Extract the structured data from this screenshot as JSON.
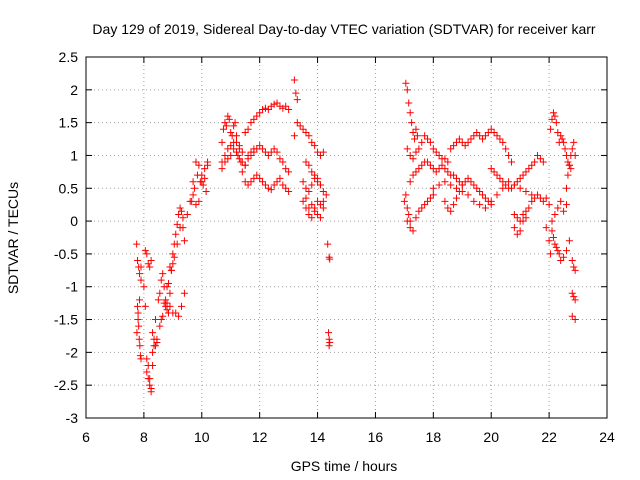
{
  "chart_data": {
    "type": "scatter",
    "title": "Day 129 of 2019, Sidereal Day-to-day VTEC variation (SDTVAR) for receiver karr",
    "xlabel": "GPS time / hours",
    "ylabel": "SDTVAR / TECUs",
    "xlim": [
      6,
      24
    ],
    "ylim": [
      -3,
      2.5
    ],
    "xticks": [
      6,
      8,
      10,
      12,
      14,
      16,
      18,
      20,
      22,
      24
    ],
    "yticks": [
      -3,
      -2.5,
      -2,
      -1.5,
      -1,
      -0.5,
      0,
      0.5,
      1,
      1.5,
      2,
      2.5
    ],
    "xtick_labels": [
      "6",
      "8",
      "10",
      "12",
      "14",
      "16",
      "18",
      "20",
      "22",
      "24"
    ],
    "ytick_labels": [
      "-3",
      "-2.5",
      "-2",
      "-1.5",
      "-1",
      "-0.5",
      "0",
      "0.5",
      "1",
      "1.5",
      "2",
      "2.5"
    ],
    "grid": true,
    "marker": "+",
    "color": "#ff0000",
    "series": [
      {
        "name": "SDTVAR",
        "x": [
          7.75,
          7.78,
          7.82,
          7.85,
          7.9,
          7.78,
          7.8,
          7.82,
          7.84,
          7.86,
          7.88,
          7.9,
          7.76,
          7.8,
          7.85,
          7.9,
          8.0,
          8.05,
          8.1,
          8.15,
          8.2,
          8.25,
          8.3,
          8.35,
          8.05,
          8.1,
          8.15,
          8.2,
          8.25,
          8.3,
          8.35,
          8.4,
          8.45,
          8.1,
          8.15,
          8.2,
          8.25,
          8.3,
          8.4,
          8.5,
          8.55,
          8.6,
          8.65,
          8.7,
          8.75,
          8.8,
          8.85,
          8.9,
          8.95,
          9.0,
          8.6,
          8.7,
          8.8,
          8.9,
          9.0,
          9.05,
          9.1,
          9.15,
          9.2,
          9.25,
          9.3,
          9.35,
          9.4,
          8.45,
          8.55,
          8.65,
          8.75,
          8.85,
          8.95,
          9.05,
          9.15,
          9.25,
          9.35,
          9.1,
          9.2,
          9.3,
          9.4,
          8.8,
          8.9,
          9.0,
          9.5,
          9.6,
          9.7,
          9.8,
          9.9,
          10.0,
          10.1,
          10.2,
          9.65,
          9.75,
          9.85,
          9.95,
          10.05,
          10.15,
          9.7,
          9.8,
          9.9,
          10.0,
          10.1,
          10.2,
          10.7,
          10.75,
          10.8,
          10.85,
          10.9,
          10.95,
          11.0,
          11.05,
          11.1,
          11.15,
          11.2,
          11.25,
          11.3,
          11.35,
          10.7,
          10.8,
          10.9,
          11.0,
          11.1,
          11.2,
          11.3,
          11.4,
          11.5,
          11.6,
          11.7,
          11.8,
          11.5,
          11.6,
          11.7,
          11.8,
          11.9,
          12.0,
          12.1,
          12.2,
          12.3,
          12.4,
          12.5,
          12.6,
          12.7,
          12.8,
          12.9,
          13.0,
          11.4,
          11.5,
          11.6,
          11.7,
          11.8,
          11.9,
          12.0,
          12.1,
          12.2,
          12.3,
          12.4,
          12.5,
          12.6,
          12.7,
          12.8,
          12.9,
          13.0,
          11.5,
          11.6,
          11.7,
          11.8,
          11.9,
          12.0,
          12.1,
          12.2,
          12.3,
          12.4,
          12.5,
          12.6,
          12.7,
          12.8,
          12.9,
          13.0,
          10.7,
          10.8,
          10.9,
          11.0,
          11.1,
          11.2,
          11.3,
          11.4,
          13.2,
          13.25,
          13.3,
          13.3,
          13.2,
          13.4,
          13.5,
          13.6,
          13.7,
          13.8,
          13.9,
          14.0,
          14.1,
          14.2,
          13.5,
          13.6,
          13.7,
          13.8,
          13.9,
          14.0,
          14.1,
          14.2,
          13.6,
          13.7,
          13.8,
          13.9,
          14.0,
          14.1,
          14.2,
          14.3,
          13.6,
          13.7,
          13.8,
          13.9,
          14.0,
          14.1,
          13.5,
          13.6,
          13.7,
          13.8,
          13.9,
          14.0,
          14.1,
          14.2,
          14.35,
          14.4,
          14.42,
          14.38,
          14.4,
          14.42,
          14.4,
          17.05,
          17.1,
          17.15,
          17.2,
          17.25,
          17.3,
          17.35,
          17.4,
          17.45,
          17.1,
          17.2,
          17.3,
          17.4,
          17.5,
          17.6,
          17.7,
          17.8,
          17.9,
          18.0,
          18.1,
          18.2,
          18.3,
          18.4,
          18.5,
          17.2,
          17.3,
          17.4,
          17.5,
          17.6,
          17.7,
          17.8,
          17.9,
          18.0,
          18.1,
          18.2,
          18.3,
          18.4,
          18.5,
          18.6,
          18.7,
          18.8,
          18.9,
          19.0,
          18.6,
          18.7,
          18.8,
          18.9,
          19.0,
          19.1,
          19.2,
          19.3,
          19.4,
          19.5,
          19.6,
          19.7,
          19.8,
          19.9,
          20.0,
          20.1,
          20.2,
          20.3,
          20.4,
          20.5,
          20.6,
          20.7,
          18.0,
          18.2,
          18.4,
          18.6,
          18.8,
          19.0,
          19.2,
          19.4,
          19.6,
          19.8,
          20.0,
          20.2,
          20.4,
          20.6,
          20.8,
          21.0,
          21.2,
          21.4,
          17.1,
          17.2,
          17.3,
          17.4,
          17.5,
          17.6,
          17.7,
          17.8,
          17.9,
          18.0,
          18.4,
          18.5,
          18.6,
          18.7,
          18.8,
          18.9,
          19.0,
          19.1,
          19.2,
          19.3,
          19.4,
          19.5,
          19.6,
          19.7,
          19.8,
          19.9,
          20.0,
          17.0,
          17.05,
          17.1,
          17.15,
          17.2,
          20.0,
          20.1,
          20.2,
          20.3,
          20.4,
          20.5,
          20.6,
          20.7,
          20.8,
          20.9,
          21.0,
          21.1,
          21.2,
          21.3,
          21.4,
          21.5,
          21.6,
          21.7,
          21.8,
          20.8,
          20.9,
          21.0,
          21.1,
          21.2,
          21.3,
          21.4,
          21.5,
          21.6,
          21.7,
          20.8,
          20.9,
          21.0,
          21.1,
          21.2,
          21.8,
          21.9,
          22.0,
          22.05,
          22.1,
          22.15,
          22.2,
          22.25,
          22.3,
          22.35,
          22.4,
          22.45,
          22.5,
          22.55,
          22.6,
          22.65,
          22.7,
          22.75,
          22.1,
          22.15,
          22.2,
          22.25,
          22.3,
          22.35,
          22.4,
          22.5,
          22.6,
          22.7,
          21.9,
          22.0,
          22.05,
          22.1,
          22.2,
          22.3,
          22.4,
          22.5,
          22.6,
          22.6,
          22.65,
          22.7,
          22.75,
          22.8,
          22.85,
          22.9,
          22.8,
          22.85,
          22.9,
          22.8,
          22.85,
          22.9,
          22.8,
          22.9
        ],
        "y": [
          -0.35,
          -0.6,
          -0.7,
          -0.8,
          -0.9,
          -1.3,
          -1.5,
          -1.6,
          -1.8,
          -1.9,
          -2.05,
          -2.1,
          -1.7,
          -1.4,
          -1.2,
          -0.7,
          -1.0,
          -1.3,
          -2.1,
          -2.2,
          -2.4,
          -2.55,
          -2.0,
          -1.9,
          -0.45,
          -0.5,
          -0.65,
          -0.7,
          -0.6,
          -1.7,
          -1.8,
          -1.9,
          -1.85,
          -2.3,
          -2.4,
          -2.5,
          -2.6,
          -2.2,
          -1.5,
          -1.2,
          -1.1,
          -0.9,
          -0.8,
          -1.0,
          -1.3,
          -1.35,
          -1.4,
          -1.1,
          -0.75,
          -0.65,
          -1.5,
          -1.25,
          -1.0,
          -0.7,
          -0.5,
          -0.35,
          -0.2,
          -0.05,
          0.1,
          0.2,
          0.15,
          -0.1,
          -0.3,
          -1.8,
          -1.6,
          -1.45,
          -1.2,
          -0.95,
          -0.75,
          -0.55,
          -0.35,
          -0.1,
          0.05,
          -1.4,
          -1.45,
          -1.3,
          -1.1,
          -1.25,
          -1.3,
          -1.4,
          0.1,
          0.3,
          0.6,
          0.9,
          0.85,
          0.7,
          0.8,
          0.9,
          0.3,
          0.5,
          0.7,
          0.6,
          0.55,
          0.45,
          0.4,
          0.25,
          0.3,
          0.6,
          0.65,
          0.85,
          1.2,
          1.4,
          1.5,
          1.45,
          1.6,
          1.55,
          1.35,
          1.3,
          1.45,
          1.5,
          1.2,
          1.0,
          1.1,
          0.9,
          0.8,
          0.9,
          0.95,
          1.0,
          1.1,
          1.05,
          0.95,
          0.9,
          0.85,
          1.0,
          1.05,
          1.1,
          1.35,
          1.4,
          1.5,
          1.55,
          1.6,
          1.65,
          1.7,
          1.72,
          1.7,
          1.75,
          1.78,
          1.8,
          1.75,
          1.72,
          1.75,
          1.7,
          0.75,
          0.85,
          0.95,
          1.0,
          1.05,
          1.1,
          1.15,
          1.1,
          1.05,
          1.0,
          1.05,
          1.1,
          1.05,
          0.95,
          0.9,
          0.8,
          0.75,
          0.6,
          0.55,
          0.6,
          0.65,
          0.7,
          0.65,
          0.6,
          0.55,
          0.5,
          0.48,
          0.55,
          0.6,
          0.65,
          0.55,
          0.5,
          0.45,
          0.9,
          1.0,
          1.1,
          1.15,
          1.2,
          1.3,
          1.15,
          1.05,
          2.15,
          1.95,
          1.85,
          1.5,
          1.3,
          1.45,
          1.4,
          1.35,
          1.3,
          1.2,
          1.15,
          1.05,
          1.0,
          1.05,
          0.6,
          0.5,
          0.45,
          0.55,
          0.65,
          0.6,
          0.55,
          0.45,
          0.2,
          0.1,
          0.05,
          0.2,
          0.3,
          0.25,
          0.3,
          0.4,
          0.9,
          0.85,
          0.75,
          0.7,
          0.65,
          0.55,
          0.3,
          0.35,
          0.2,
          0.25,
          0.15,
          0.1,
          0.05,
          0.2,
          -0.35,
          -0.55,
          -0.58,
          -1.7,
          -1.8,
          -1.85,
          -1.9,
          2.1,
          2.0,
          1.8,
          1.65,
          1.5,
          1.35,
          1.25,
          1.4,
          1.3,
          1.1,
          1.0,
          0.95,
          1.05,
          1.1,
          1.2,
          1.3,
          1.25,
          1.2,
          1.1,
          1.05,
          1.0,
          0.95,
          0.95,
          0.9,
          0.6,
          0.7,
          0.75,
          0.8,
          0.85,
          0.9,
          0.9,
          0.85,
          0.8,
          0.75,
          0.8,
          0.85,
          0.8,
          0.75,
          0.7,
          0.7,
          0.65,
          0.6,
          0.55,
          1.1,
          1.15,
          1.2,
          1.25,
          1.2,
          1.15,
          1.2,
          1.25,
          1.3,
          1.35,
          1.3,
          1.25,
          1.3,
          1.35,
          1.4,
          1.35,
          1.3,
          1.25,
          1.2,
          1.1,
          1.0,
          0.9,
          0.5,
          0.55,
          0.6,
          0.55,
          0.5,
          0.45,
          0.4,
          0.3,
          0.25,
          0.2,
          0.3,
          0.4,
          0.5,
          0.6,
          0.55,
          0.5,
          0.45,
          0.4,
          0.0,
          -0.1,
          -0.15,
          0.05,
          0.15,
          0.2,
          0.25,
          0.3,
          0.35,
          0.4,
          0.3,
          0.2,
          0.15,
          0.25,
          0.35,
          0.45,
          0.55,
          0.6,
          0.65,
          0.6,
          0.55,
          0.5,
          0.45,
          0.4,
          0.35,
          0.3,
          0.25,
          0.3,
          0.4,
          0.2,
          0.1,
          0.0,
          0.8,
          0.75,
          0.7,
          0.65,
          0.6,
          0.55,
          0.5,
          0.5,
          0.55,
          0.6,
          0.65,
          0.7,
          0.75,
          0.8,
          0.85,
          0.9,
          1.0,
          0.95,
          0.9,
          0.1,
          0.05,
          0.0,
          0.1,
          0.15,
          0.2,
          0.3,
          0.35,
          0.4,
          0.35,
          -0.1,
          -0.2,
          -0.15,
          0.0,
          0.05,
          0.3,
          0.35,
          0.25,
          1.4,
          1.55,
          1.65,
          1.6,
          1.5,
          1.35,
          1.2,
          1.3,
          1.25,
          1.2,
          1.1,
          1.0,
          0.9,
          0.85,
          0.8,
          -0.15,
          -0.25,
          -0.35,
          -0.4,
          -0.45,
          -0.5,
          -0.6,
          -0.55,
          -0.45,
          -0.3,
          -0.1,
          -0.3,
          -0.5,
          0.0,
          0.1,
          0.2,
          0.3,
          0.15,
          0.25,
          0.5,
          0.7,
          0.85,
          1.0,
          1.1,
          1.2,
          1.0,
          -0.6,
          -0.7,
          -0.75,
          -1.1,
          -1.15,
          -1.2,
          -1.45,
          -1.5
        ]
      }
    ]
  }
}
